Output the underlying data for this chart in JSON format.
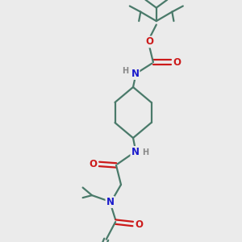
{
  "bg_color": "#ebebeb",
  "bond_color": "#4a7a6a",
  "N_color": "#1a1acc",
  "O_color": "#cc1a1a",
  "H_color": "#888888",
  "lw": 1.6,
  "fs": 8.5,
  "fss": 7.0,
  "xlim": [
    0,
    10
  ],
  "ylim": [
    0,
    10
  ]
}
